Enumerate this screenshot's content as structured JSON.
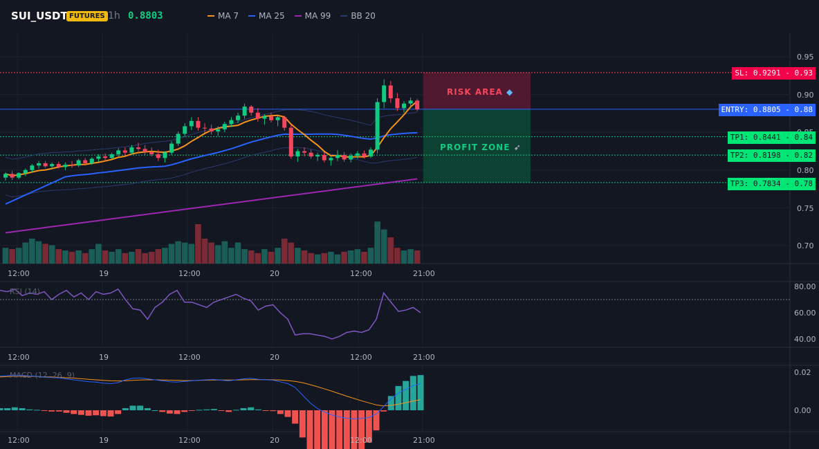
{
  "header": {
    "symbol": "SUI_USDT",
    "market_badge": "FUTURES",
    "interval": "1h",
    "last_price": "0.8803",
    "legend": [
      {
        "label": "MA 7",
        "color": "#f7931a"
      },
      {
        "label": "MA 25",
        "color": "#2962ff"
      },
      {
        "label": "MA 99",
        "color": "#9c27b0"
      },
      {
        "label": "BB 20",
        "color": "#2a3a6b"
      }
    ]
  },
  "colors": {
    "background": "#131722",
    "up": "#0ecb81",
    "down": "#f6465d",
    "up_volume": "#1b5e57",
    "down_volume": "#7a2a35",
    "rsi_line": "#7e57c2",
    "macd_line": "#2962ff",
    "signal_line": "#f7931a"
  },
  "price_levels": {
    "sl": {
      "value": 0.9291,
      "label": "SL: 0.9291",
      "axis": "0.93",
      "color": "#f6465d"
    },
    "entry": {
      "value": 0.8805,
      "label": "ENTRY: 0.8805",
      "axis": "0.88",
      "color": "#2962ff"
    },
    "tp1": {
      "value": 0.8441,
      "label": "TP1: 0.8441",
      "axis": "0.84",
      "color": "#0ecb81"
    },
    "tp2": {
      "value": 0.8198,
      "label": "TP2: 0.8198",
      "axis": "0.82",
      "color": "#0ecb81"
    },
    "tp3": {
      "value": 0.7834,
      "label": "TP3: 0.7834",
      "axis": "0.78",
      "color": "#0ecb81"
    }
  },
  "zones": {
    "risk_label": "RISK AREA",
    "risk_icon": "shield-icon",
    "profit_label": "PROFIT ZONE",
    "profit_icon": "rocket-icon"
  },
  "price_axis": {
    "ticks": [
      "0.95",
      "0.90",
      "0.85",
      "0.80",
      "0.75",
      "0.70"
    ]
  },
  "time_axis": {
    "ticks": [
      "12:00",
      "19",
      "12:00",
      "20",
      "12:00",
      "21:00"
    ]
  },
  "rsi_pane": {
    "title": "RSI (14)",
    "ticks": [
      "80.00",
      "60.00",
      "40.00"
    ],
    "overbought": 70
  },
  "macd_pane": {
    "title": "MACD (12, 26, 9)",
    "ticks": [
      "0.02",
      "0.00"
    ]
  },
  "chart_data": {
    "type": "candlestick",
    "candles": [
      [
        0.79,
        0.797,
        0.786,
        0.795
      ],
      [
        0.795,
        0.799,
        0.787,
        0.79
      ],
      [
        0.79,
        0.797,
        0.788,
        0.796
      ],
      [
        0.796,
        0.802,
        0.792,
        0.8
      ],
      [
        0.8,
        0.808,
        0.797,
        0.806
      ],
      [
        0.806,
        0.812,
        0.802,
        0.809
      ],
      [
        0.809,
        0.812,
        0.803,
        0.805
      ],
      [
        0.805,
        0.81,
        0.801,
        0.808
      ],
      [
        0.808,
        0.811,
        0.802,
        0.804
      ],
      [
        0.804,
        0.81,
        0.8,
        0.807
      ],
      [
        0.807,
        0.812,
        0.803,
        0.806
      ],
      [
        0.806,
        0.815,
        0.804,
        0.813
      ],
      [
        0.813,
        0.816,
        0.806,
        0.809
      ],
      [
        0.809,
        0.817,
        0.807,
        0.815
      ],
      [
        0.815,
        0.821,
        0.811,
        0.818
      ],
      [
        0.818,
        0.822,
        0.812,
        0.816
      ],
      [
        0.816,
        0.823,
        0.813,
        0.821
      ],
      [
        0.821,
        0.829,
        0.818,
        0.826
      ],
      [
        0.826,
        0.83,
        0.819,
        0.823
      ],
      [
        0.823,
        0.833,
        0.821,
        0.83
      ],
      [
        0.83,
        0.836,
        0.825,
        0.828
      ],
      [
        0.828,
        0.833,
        0.82,
        0.824
      ],
      [
        0.824,
        0.83,
        0.818,
        0.821
      ],
      [
        0.821,
        0.827,
        0.812,
        0.816
      ],
      [
        0.816,
        0.825,
        0.81,
        0.823
      ],
      [
        0.823,
        0.838,
        0.82,
        0.835
      ],
      [
        0.835,
        0.851,
        0.832,
        0.848
      ],
      [
        0.848,
        0.862,
        0.844,
        0.858
      ],
      [
        0.858,
        0.87,
        0.853,
        0.865
      ],
      [
        0.865,
        0.87,
        0.852,
        0.856
      ],
      [
        0.856,
        0.862,
        0.85,
        0.855
      ],
      [
        0.855,
        0.86,
        0.847,
        0.851
      ],
      [
        0.851,
        0.858,
        0.845,
        0.854
      ],
      [
        0.854,
        0.864,
        0.85,
        0.861
      ],
      [
        0.861,
        0.87,
        0.857,
        0.866
      ],
      [
        0.866,
        0.876,
        0.862,
        0.872
      ],
      [
        0.872,
        0.888,
        0.868,
        0.884
      ],
      [
        0.884,
        0.886,
        0.872,
        0.876
      ],
      [
        0.876,
        0.882,
        0.864,
        0.868
      ],
      [
        0.868,
        0.874,
        0.86,
        0.871
      ],
      [
        0.871,
        0.876,
        0.863,
        0.866
      ],
      [
        0.866,
        0.872,
        0.858,
        0.87
      ],
      [
        0.87,
        0.872,
        0.852,
        0.856
      ],
      [
        0.856,
        0.86,
        0.815,
        0.818
      ],
      [
        0.818,
        0.828,
        0.811,
        0.825
      ],
      [
        0.825,
        0.83,
        0.818,
        0.823
      ],
      [
        0.823,
        0.827,
        0.815,
        0.818
      ],
      [
        0.818,
        0.823,
        0.812,
        0.82
      ],
      [
        0.82,
        0.824,
        0.81,
        0.813
      ],
      [
        0.813,
        0.818,
        0.806,
        0.816
      ],
      [
        0.816,
        0.826,
        0.812,
        0.82
      ],
      [
        0.82,
        0.824,
        0.811,
        0.814
      ],
      [
        0.814,
        0.822,
        0.81,
        0.819
      ],
      [
        0.819,
        0.825,
        0.815,
        0.822
      ],
      [
        0.822,
        0.826,
        0.815,
        0.818
      ],
      [
        0.818,
        0.83,
        0.816,
        0.827
      ],
      [
        0.827,
        0.895,
        0.822,
        0.89
      ],
      [
        0.89,
        0.92,
        0.882,
        0.912
      ],
      [
        0.912,
        0.918,
        0.889,
        0.895
      ],
      [
        0.895,
        0.902,
        0.878,
        0.882
      ],
      [
        0.882,
        0.891,
        0.876,
        0.888
      ],
      [
        0.888,
        0.896,
        0.882,
        0.892
      ],
      [
        0.892,
        0.894,
        0.878,
        0.8803
      ]
    ],
    "volume": [
      0.6,
      0.55,
      0.6,
      0.8,
      0.95,
      0.85,
      0.75,
      0.7,
      0.55,
      0.5,
      0.45,
      0.5,
      0.4,
      0.55,
      0.75,
      0.5,
      0.45,
      0.55,
      0.4,
      0.45,
      0.55,
      0.4,
      0.45,
      0.55,
      0.6,
      0.75,
      0.85,
      0.8,
      0.75,
      1.5,
      0.95,
      0.8,
      0.7,
      0.85,
      0.6,
      0.8,
      0.55,
      0.5,
      0.4,
      0.55,
      0.45,
      0.6,
      0.95,
      0.8,
      0.6,
      0.5,
      0.4,
      0.35,
      0.4,
      0.45,
      0.35,
      0.45,
      0.5,
      0.55,
      0.45,
      0.6,
      1.6,
      1.3,
      1.0,
      0.6,
      0.5,
      0.55,
      0.5
    ],
    "rsi": [
      77,
      76,
      78,
      73,
      75,
      74,
      76,
      70,
      74,
      77,
      72,
      75,
      70,
      76,
      74,
      75,
      78,
      70,
      63,
      62,
      55,
      64,
      68,
      74,
      77,
      68,
      68,
      66,
      64,
      68,
      70,
      72,
      74,
      71,
      69,
      62,
      65,
      66,
      60,
      55,
      43,
      44,
      44,
      43,
      42,
      40,
      42,
      45,
      46,
      45,
      47,
      55,
      75,
      68,
      61,
      62,
      64,
      60
    ],
    "macd": [
      0.018,
      0.0182,
      0.0185,
      0.0183,
      0.018,
      0.0178,
      0.0175,
      0.0172,
      0.017,
      0.0165,
      0.016,
      0.0155,
      0.015,
      0.0148,
      0.0143,
      0.014,
      0.0145,
      0.016,
      0.0168,
      0.017,
      0.0165,
      0.016,
      0.0155,
      0.015,
      0.0148,
      0.0152,
      0.0155,
      0.0158,
      0.016,
      0.0162,
      0.0158,
      0.0155,
      0.016,
      0.0165,
      0.0168,
      0.0163,
      0.016,
      0.0158,
      0.015,
      0.014,
      0.012,
      0.008,
      0.004,
      0.001,
      -0.001,
      -0.0025,
      -0.0035,
      -0.0042,
      -0.0045,
      -0.0043,
      -0.0038,
      -0.002,
      0.002,
      0.006,
      0.009,
      0.011,
      0.013,
      0.014
    ],
    "signal": [
      0.0175,
      0.0177,
      0.0178,
      0.0178,
      0.0178,
      0.0177,
      0.0176,
      0.0175,
      0.0173,
      0.0171,
      0.0169,
      0.0166,
      0.0163,
      0.016,
      0.0157,
      0.0155,
      0.0154,
      0.0155,
      0.0157,
      0.0159,
      0.016,
      0.016,
      0.0159,
      0.0158,
      0.0157,
      0.0156,
      0.0156,
      0.0157,
      0.0158,
      0.0159,
      0.0159,
      0.0159,
      0.0159,
      0.016,
      0.0161,
      0.0161,
      0.0161,
      0.016,
      0.0159,
      0.0156,
      0.0152,
      0.0145,
      0.0135,
      0.0124,
      0.0112,
      0.01,
      0.0087,
      0.0074,
      0.0062,
      0.005,
      0.0039,
      0.0028,
      0.0023,
      0.0026,
      0.0032,
      0.004,
      0.0048,
      0.0056
    ],
    "y_range": [
      0.675,
      0.97
    ]
  }
}
